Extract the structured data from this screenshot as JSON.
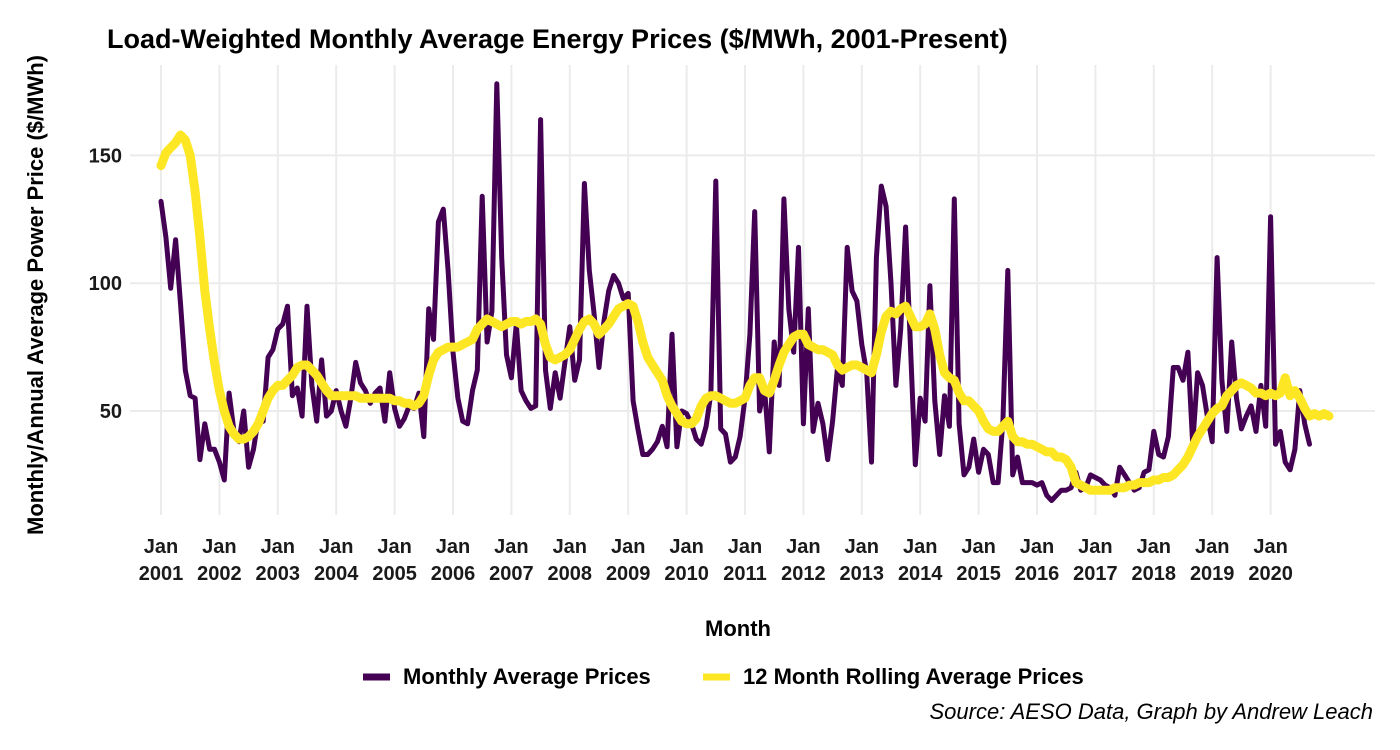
{
  "chart_data": {
    "type": "line",
    "title": "Load-Weighted Monthly Average Energy Prices ($/MWh, 2001-Present)",
    "xlabel": "Month",
    "ylabel": "Monthly/Annual Average Power Price ($/MWh)",
    "caption": "Source: AESO Data, Graph by Andrew Leach",
    "x_start": "2001-01",
    "x_end": "2020-09",
    "xlim": [
      "2001-01",
      "2020-09"
    ],
    "ylim": [
      10,
      180
    ],
    "y_ticks": [
      50,
      100,
      150
    ],
    "x_ticks": [
      {
        "line1": "Jan",
        "line2": "2001"
      },
      {
        "line1": "Jan",
        "line2": "2002"
      },
      {
        "line1": "Jan",
        "line2": "2003"
      },
      {
        "line1": "Jan",
        "line2": "2004"
      },
      {
        "line1": "Jan",
        "line2": "2005"
      },
      {
        "line1": "Jan",
        "line2": "2006"
      },
      {
        "line1": "Jan",
        "line2": "2007"
      },
      {
        "line1": "Jan",
        "line2": "2008"
      },
      {
        "line1": "Jan",
        "line2": "2009"
      },
      {
        "line1": "Jan",
        "line2": "2010"
      },
      {
        "line1": "Jan",
        "line2": "2011"
      },
      {
        "line1": "Jan",
        "line2": "2012"
      },
      {
        "line1": "Jan",
        "line2": "2013"
      },
      {
        "line1": "Jan",
        "line2": "2014"
      },
      {
        "line1": "Jan",
        "line2": "2015"
      },
      {
        "line1": "Jan",
        "line2": "2016"
      },
      {
        "line1": "Jan",
        "line2": "2017"
      },
      {
        "line1": "Jan",
        "line2": "2018"
      },
      {
        "line1": "Jan",
        "line2": "2019"
      },
      {
        "line1": "Jan",
        "line2": "2020"
      }
    ],
    "grid": true,
    "legend_position": "bottom",
    "series": [
      {
        "name": "Monthly Average Prices",
        "color": "#440154",
        "values": [
          132,
          118,
          98,
          117,
          92,
          66,
          56,
          55,
          31,
          45,
          35,
          35,
          30,
          23,
          57,
          42,
          38,
          50,
          28,
          35,
          47,
          46,
          71,
          74,
          82,
          84,
          91,
          56,
          59,
          48,
          91,
          60,
          46,
          70,
          48,
          50,
          58,
          50,
          44,
          55,
          69,
          61,
          58,
          53,
          57,
          59,
          46,
          65,
          51,
          44,
          47,
          52,
          51,
          57,
          40,
          90,
          78,
          124,
          129,
          105,
          73,
          55,
          46,
          45,
          58,
          66,
          134,
          77,
          89,
          178,
          110,
          72,
          63,
          84,
          58,
          54,
          51,
          52,
          164,
          66,
          51,
          65,
          55,
          69,
          83,
          62,
          70,
          139,
          105,
          88,
          67,
          85,
          97,
          103,
          100,
          94,
          96,
          54,
          43,
          33,
          33,
          35,
          38,
          44,
          36,
          80,
          36,
          50,
          49,
          45,
          39,
          37,
          44,
          57,
          140,
          43,
          41,
          30,
          32,
          40,
          55,
          80,
          128,
          50,
          59,
          34,
          77,
          60,
          133,
          90,
          73,
          114,
          45,
          90,
          42,
          53,
          45,
          31,
          46,
          67,
          60,
          114,
          97,
          93,
          76,
          65,
          30,
          110,
          138,
          130,
          100,
          60,
          82,
          122,
          75,
          29,
          55,
          46,
          99,
          54,
          33,
          56,
          44,
          133,
          45,
          25,
          28,
          39,
          26,
          35,
          33,
          22,
          22,
          46,
          105,
          25,
          32,
          22,
          22,
          22,
          21,
          22,
          17,
          15,
          17,
          19,
          19,
          20,
          26,
          19,
          20,
          25,
          24,
          23,
          21,
          20,
          17,
          28,
          25,
          22,
          19,
          20,
          26,
          27,
          42,
          33,
          32,
          40,
          67,
          67,
          62,
          73,
          37,
          65,
          60,
          48,
          38,
          110,
          62,
          42,
          77,
          55,
          43,
          48,
          52,
          42,
          60,
          44,
          126,
          37,
          42,
          30,
          27,
          35,
          58,
          45,
          37
        ]
      },
      {
        "name": "12 Month Rolling Average Prices",
        "color": "#FDE725",
        "values": [
          146,
          151,
          153,
          155,
          158,
          156,
          150,
          136,
          118,
          97,
          82,
          69,
          58,
          50,
          44,
          41,
          39,
          39,
          40,
          42,
          45,
          50,
          55,
          58,
          60,
          60,
          62,
          64,
          67,
          68,
          68,
          66,
          64,
          61,
          58,
          56,
          56,
          56,
          56,
          56,
          56,
          55,
          55,
          55,
          55,
          55,
          55,
          55,
          54,
          54,
          53,
          53,
          52,
          53,
          56,
          64,
          70,
          73,
          74,
          75,
          75,
          75,
          76,
          77,
          78,
          82,
          84,
          86,
          85,
          84,
          83,
          84,
          85,
          85,
          84,
          85,
          85,
          86,
          84,
          76,
          71,
          70,
          71,
          72,
          74,
          78,
          82,
          85,
          86,
          84,
          80,
          82,
          84,
          87,
          90,
          91,
          92,
          91,
          85,
          77,
          71,
          68,
          65,
          62,
          56,
          52,
          49,
          46,
          45,
          45,
          47,
          52,
          55,
          56,
          56,
          55,
          54,
          53,
          53,
          54,
          55,
          60,
          63,
          63,
          58,
          57,
          62,
          68,
          73,
          76,
          79,
          80,
          80,
          76,
          75,
          74,
          74,
          73,
          72,
          68,
          66,
          67,
          68,
          68,
          67,
          66,
          65,
          72,
          81,
          87,
          89,
          88,
          90,
          91,
          87,
          83,
          83,
          84,
          88,
          82,
          72,
          65,
          63,
          62,
          57,
          54,
          54,
          52,
          50,
          46,
          43,
          42,
          42,
          44,
          46,
          40,
          38,
          38,
          37,
          37,
          36,
          35,
          34,
          34,
          32,
          32,
          31,
          28,
          22,
          21,
          20,
          19,
          19,
          19,
          19,
          19,
          20,
          20,
          20,
          21,
          21,
          22,
          22,
          22,
          23,
          23,
          24,
          24,
          25,
          27,
          29,
          32,
          36,
          40,
          43,
          46,
          49,
          51,
          52,
          56,
          58,
          60,
          61,
          60,
          59,
          57,
          57,
          56,
          57,
          56,
          57,
          63,
          56,
          58,
          55,
          51,
          48,
          49,
          48,
          49,
          48
        ]
      }
    ]
  }
}
